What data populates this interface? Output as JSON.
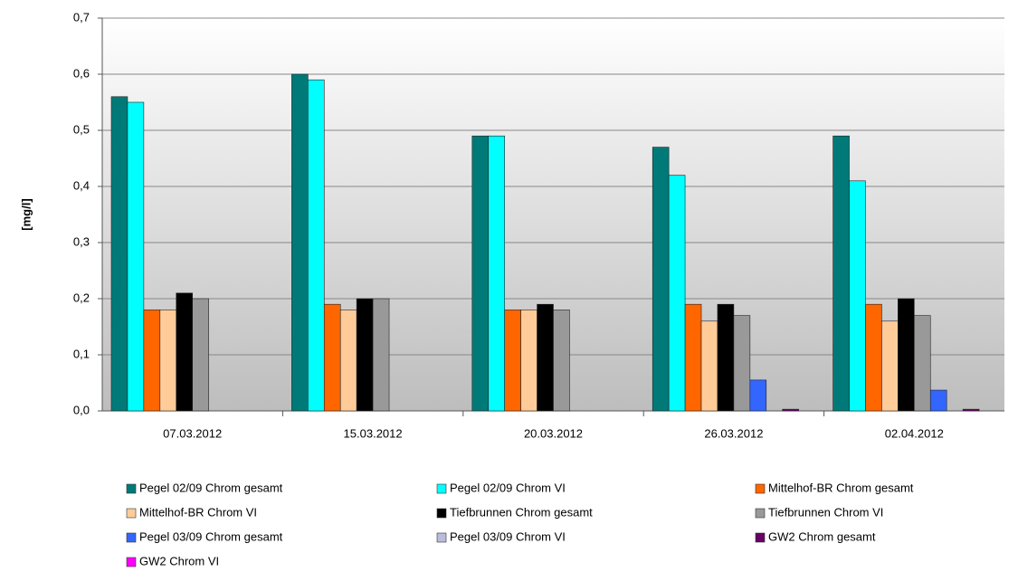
{
  "chart_data": {
    "type": "bar",
    "y_label": "[mg/l]",
    "categories": [
      "07.03.2012",
      "15.03.2012",
      "20.03.2012",
      "26.03.2012",
      "02.04.2012"
    ],
    "series": [
      {
        "name": "Pegel 02/09 Chrom gesamt",
        "color": "#007a78",
        "values": [
          0.56,
          0.6,
          0.49,
          0.47,
          0.49
        ]
      },
      {
        "name": "Pegel 02/09 Chrom VI",
        "color": "#00ffff",
        "values": [
          0.55,
          0.59,
          0.49,
          0.42,
          0.41
        ]
      },
      {
        "name": "Mittelhof-BR Chrom gesamt",
        "color": "#ff6600",
        "values": [
          0.18,
          0.19,
          0.18,
          0.19,
          0.19
        ]
      },
      {
        "name": "Mittelhof-BR Chrom VI",
        "color": "#ffcc99",
        "values": [
          0.18,
          0.18,
          0.18,
          0.16,
          0.16
        ]
      },
      {
        "name": "Tiefbrunnen Chrom gesamt",
        "color": "#000000",
        "values": [
          0.21,
          0.2,
          0.19,
          0.19,
          0.2
        ]
      },
      {
        "name": "Tiefbrunnen Chrom VI",
        "color": "#999999",
        "values": [
          0.2,
          0.2,
          0.18,
          0.17,
          0.17
        ]
      },
      {
        "name": "Pegel 03/09 Chrom gesamt",
        "color": "#3366ff",
        "values": [
          null,
          null,
          null,
          0.055,
          0.037
        ]
      },
      {
        "name": "Pegel 03/09 Chrom VI",
        "color": "#bbbbdd",
        "values": [
          null,
          null,
          null,
          null,
          null
        ]
      },
      {
        "name": "GW2 Chrom gesamt",
        "color": "#660066",
        "values": [
          null,
          null,
          null,
          0.003,
          0.003
        ]
      },
      {
        "name": "GW2 Chrom VI",
        "color": "#ff00ff",
        "values": [
          null,
          null,
          null,
          null,
          null
        ]
      }
    ],
    "ylim": [
      0,
      0.7
    ],
    "yticks": [
      {
        "value": 0,
        "label": "0,0"
      },
      {
        "value": 0.1,
        "label": "0,1"
      },
      {
        "value": 0.2,
        "label": "0,2"
      },
      {
        "value": 0.3,
        "label": "0,3"
      },
      {
        "value": 0.4,
        "label": "0,4"
      },
      {
        "value": 0.5,
        "label": "0,5"
      },
      {
        "value": 0.6,
        "label": "0,6"
      },
      {
        "value": 0.7,
        "label": "0,7"
      }
    ],
    "grid": true
  }
}
